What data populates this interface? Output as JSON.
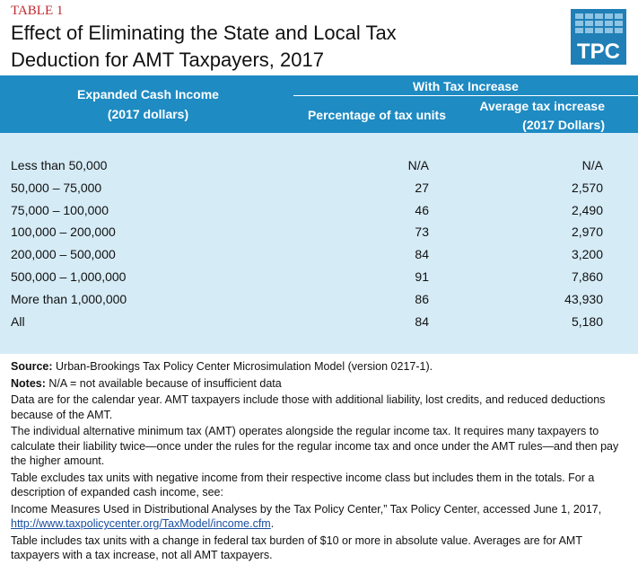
{
  "header": {
    "label": "TABLE 1",
    "title_line1": "Effect of Eliminating the State and Local Tax",
    "title_line2": "Deduction for AMT Taxpayers, 2017",
    "logo": "TPC"
  },
  "table": {
    "group_header": "With Tax Increase",
    "columns": [
      [
        "Expanded Cash Income",
        "(2017 dollars)"
      ],
      [
        "Percentage of tax units"
      ],
      [
        "Average tax increase",
        "(2017 Dollars)"
      ]
    ],
    "rows": [
      [
        "Less than 50,000",
        "N/A",
        "N/A"
      ],
      [
        "50,000 – 75,000",
        "27",
        "2,570"
      ],
      [
        "75,000 – 100,000",
        "46",
        "2,490"
      ],
      [
        "100,000 – 200,000",
        "73",
        "2,970"
      ],
      [
        "200,000 – 500,000",
        "84",
        "3,200"
      ],
      [
        "500,000 – 1,000,000",
        "91",
        "7,860"
      ],
      [
        "More than 1,000,000",
        "86",
        "43,930"
      ],
      [
        "All",
        "84",
        "5,180"
      ]
    ]
  },
  "notes": {
    "source_label": "Source:",
    "source": "Urban-Brookings Tax Policy Center Microsimulation Model (version 0217-1).",
    "notes_label": "Notes:",
    "na": "N/A = not available because of insufficient data",
    "paragraphs": [
      "Data are for the calendar year. AMT taxpayers include those with additional liability, lost credits, and reduced deductions because of the AMT.",
      "The individual alternative minimum tax (AMT) operates alongside the regular income tax. It requires many taxpayers to calculate their liability twice—once under the rules for the regular income tax and once under the AMT rules—and then pay the higher amount.",
      "Table excludes tax units with negative income from their respective income class but includes them in the totals. For a description of expanded cash income, see:"
    ],
    "reference": "Income Measures Used in Distributional Analyses by the Tax Policy Center,” Tax Policy Center, accessed June 1, 2017, ",
    "link": "http://www.taxpolicycenter.org/TaxModel/income.cfm",
    "link_end": ".",
    "last": "Table includes tax units with a change in federal tax burden of $10 or more in absolute value. Averages are for AMT taxpayers with a tax increase, not all AMT taxpayers."
  }
}
